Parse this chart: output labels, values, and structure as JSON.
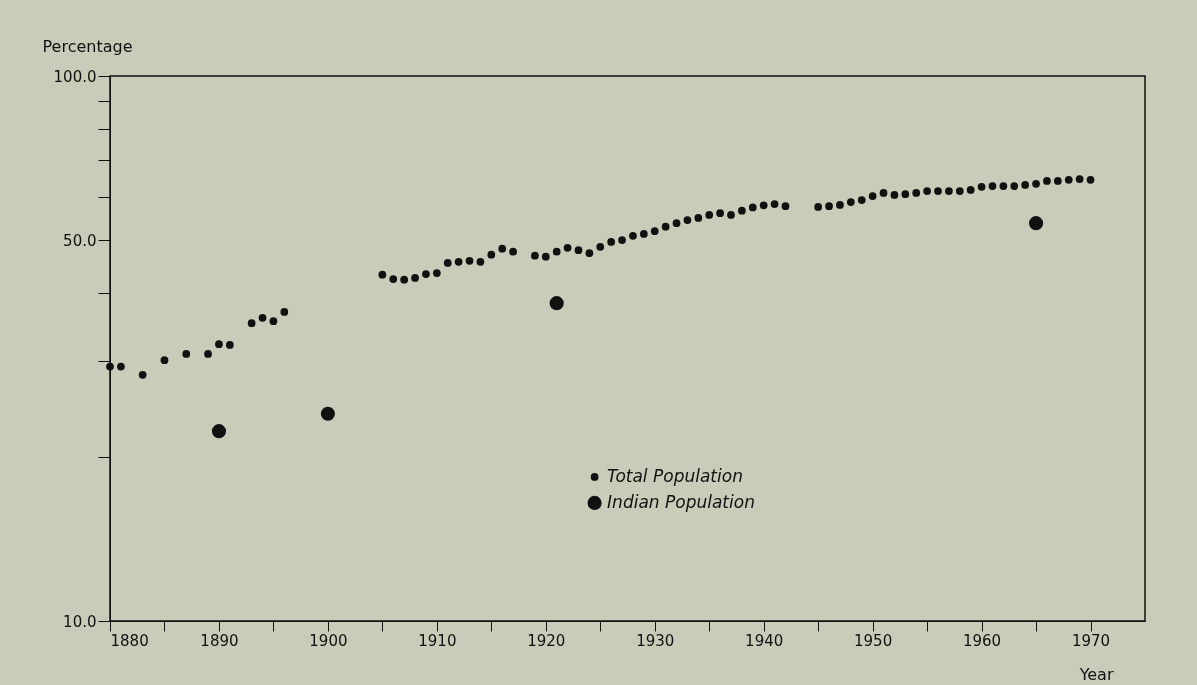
{
  "chart_data": {
    "type": "scatter",
    "xlabel": "Year",
    "ylabel": "Percentage",
    "log": "y",
    "marker": "circle",
    "grid": false,
    "legend": "bottom",
    "xlim": [
      1880,
      1975
    ],
    "xticks": [
      1880,
      {
        "value": 1885,
        "label": null
      },
      1890,
      {
        "value": 1895,
        "label": null
      },
      1900,
      {
        "value": 1905,
        "label": null
      },
      1910,
      {
        "value": 1915,
        "label": null
      },
      1920,
      {
        "value": 1925,
        "label": null
      },
      1930,
      {
        "value": 1935,
        "label": null
      },
      1940,
      {
        "value": 1945,
        "label": null
      },
      1950,
      {
        "value": 1955,
        "label": null
      },
      1960,
      {
        "value": 1965,
        "label": null
      },
      1970
    ],
    "ylim": [
      10,
      100
    ],
    "yticks": [
      {
        "value": 10,
        "label": "10.0"
      },
      {
        "value": 20,
        "label": null
      },
      {
        "value": 30,
        "label": null
      },
      {
        "value": 40,
        "label": null
      },
      {
        "value": 50,
        "label": "50.0"
      },
      {
        "value": 60,
        "label": null
      },
      {
        "value": 70,
        "label": null
      },
      {
        "value": 80,
        "label": null
      },
      {
        "value": 90,
        "label": null
      },
      {
        "value": 100,
        "label": "100.0"
      }
    ],
    "series": [
      {
        "name": "Total Population",
        "color": "#111111",
        "x": [
          1880,
          1881,
          1883,
          1885,
          1887,
          1889,
          1890,
          1891,
          1893,
          1894,
          1895,
          1896,
          1905,
          1906,
          1907,
          1908,
          1909,
          1910,
          1911,
          1912,
          1913,
          1914,
          1915,
          1916,
          1917,
          1919,
          1920,
          1921,
          1922,
          1923,
          1924,
          1925,
          1926,
          1927,
          1928,
          1929,
          1930,
          1931,
          1932,
          1933,
          1934,
          1935,
          1936,
          1937,
          1938,
          1939,
          1940,
          1941,
          1942,
          1945,
          1946,
          1947,
          1948,
          1949,
          1950,
          1951,
          1952,
          1953,
          1954,
          1955,
          1956,
          1957,
          1958,
          1959,
          1960,
          1961,
          1962,
          1963,
          1964,
          1965,
          1966,
          1967,
          1968,
          1969,
          1970
        ],
        "values": [
          29.3,
          29.3,
          28.3,
          30.1,
          30.9,
          30.9,
          32.2,
          32.1,
          35.2,
          36.0,
          35.5,
          36.9,
          43.2,
          42.4,
          42.3,
          42.6,
          43.3,
          43.5,
          45.4,
          45.6,
          45.8,
          45.6,
          47.0,
          48.2,
          47.6,
          46.8,
          46.6,
          47.6,
          48.4,
          47.9,
          47.3,
          48.6,
          49.6,
          50.0,
          50.9,
          51.3,
          51.9,
          52.9,
          53.7,
          54.4,
          54.9,
          55.6,
          56.0,
          55.6,
          56.6,
          57.4,
          57.9,
          58.2,
          57.7,
          57.5,
          57.7,
          58.0,
          58.7,
          59.2,
          60.2,
          61.0,
          60.5,
          60.7,
          61.0,
          61.5,
          61.5,
          61.5,
          61.5,
          61.8,
          62.6,
          62.8,
          62.8,
          62.8,
          63.1,
          63.4,
          64.2,
          64.2,
          64.5,
          64.7,
          64.5
        ]
      },
      {
        "name": "Indian Population",
        "color": "#111111",
        "x": [
          1890,
          1900,
          1921,
          1965
        ],
        "values": [
          22.3,
          24.0,
          38.3,
          53.7
        ]
      }
    ]
  }
}
